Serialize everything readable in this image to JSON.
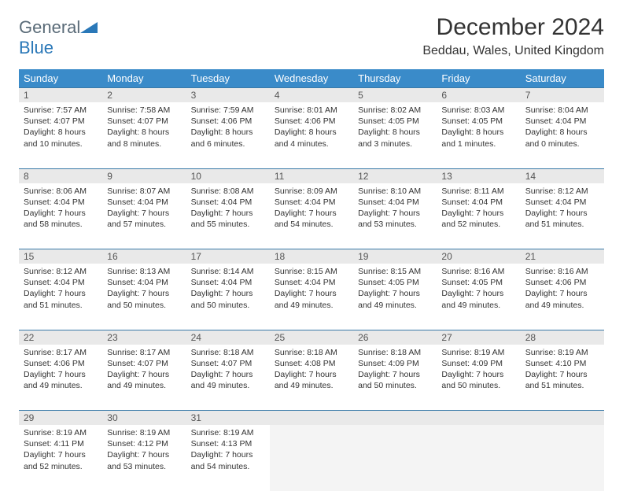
{
  "brand": {
    "general": "General",
    "blue": "Blue"
  },
  "title": "December 2024",
  "location": "Beddau, Wales, United Kingdom",
  "colors": {
    "header_bg": "#3a8bc9",
    "header_text": "#ffffff",
    "daynum_bg": "#e9e9e9",
    "rule": "#3a7aa8",
    "logo_gray": "#5a6b78",
    "logo_blue": "#2a78b8"
  },
  "weekdays": [
    "Sunday",
    "Monday",
    "Tuesday",
    "Wednesday",
    "Thursday",
    "Friday",
    "Saturday"
  ],
  "weeks": [
    {
      "days": [
        {
          "n": "1",
          "sunrise": "7:57 AM",
          "sunset": "4:07 PM",
          "day_h": "8",
          "day_m": "10"
        },
        {
          "n": "2",
          "sunrise": "7:58 AM",
          "sunset": "4:07 PM",
          "day_h": "8",
          "day_m": "8"
        },
        {
          "n": "3",
          "sunrise": "7:59 AM",
          "sunset": "4:06 PM",
          "day_h": "8",
          "day_m": "6"
        },
        {
          "n": "4",
          "sunrise": "8:01 AM",
          "sunset": "4:06 PM",
          "day_h": "8",
          "day_m": "4"
        },
        {
          "n": "5",
          "sunrise": "8:02 AM",
          "sunset": "4:05 PM",
          "day_h": "8",
          "day_m": "3"
        },
        {
          "n": "6",
          "sunrise": "8:03 AM",
          "sunset": "4:05 PM",
          "day_h": "8",
          "day_m": "1"
        },
        {
          "n": "7",
          "sunrise": "8:04 AM",
          "sunset": "4:04 PM",
          "day_h": "8",
          "day_m": "0"
        }
      ]
    },
    {
      "days": [
        {
          "n": "8",
          "sunrise": "8:06 AM",
          "sunset": "4:04 PM",
          "day_h": "7",
          "day_m": "58"
        },
        {
          "n": "9",
          "sunrise": "8:07 AM",
          "sunset": "4:04 PM",
          "day_h": "7",
          "day_m": "57"
        },
        {
          "n": "10",
          "sunrise": "8:08 AM",
          "sunset": "4:04 PM",
          "day_h": "7",
          "day_m": "55"
        },
        {
          "n": "11",
          "sunrise": "8:09 AM",
          "sunset": "4:04 PM",
          "day_h": "7",
          "day_m": "54"
        },
        {
          "n": "12",
          "sunrise": "8:10 AM",
          "sunset": "4:04 PM",
          "day_h": "7",
          "day_m": "53"
        },
        {
          "n": "13",
          "sunrise": "8:11 AM",
          "sunset": "4:04 PM",
          "day_h": "7",
          "day_m": "52"
        },
        {
          "n": "14",
          "sunrise": "8:12 AM",
          "sunset": "4:04 PM",
          "day_h": "7",
          "day_m": "51"
        }
      ]
    },
    {
      "days": [
        {
          "n": "15",
          "sunrise": "8:12 AM",
          "sunset": "4:04 PM",
          "day_h": "7",
          "day_m": "51"
        },
        {
          "n": "16",
          "sunrise": "8:13 AM",
          "sunset": "4:04 PM",
          "day_h": "7",
          "day_m": "50"
        },
        {
          "n": "17",
          "sunrise": "8:14 AM",
          "sunset": "4:04 PM",
          "day_h": "7",
          "day_m": "50"
        },
        {
          "n": "18",
          "sunrise": "8:15 AM",
          "sunset": "4:04 PM",
          "day_h": "7",
          "day_m": "49"
        },
        {
          "n": "19",
          "sunrise": "8:15 AM",
          "sunset": "4:05 PM",
          "day_h": "7",
          "day_m": "49"
        },
        {
          "n": "20",
          "sunrise": "8:16 AM",
          "sunset": "4:05 PM",
          "day_h": "7",
          "day_m": "49"
        },
        {
          "n": "21",
          "sunrise": "8:16 AM",
          "sunset": "4:06 PM",
          "day_h": "7",
          "day_m": "49"
        }
      ]
    },
    {
      "days": [
        {
          "n": "22",
          "sunrise": "8:17 AM",
          "sunset": "4:06 PM",
          "day_h": "7",
          "day_m": "49"
        },
        {
          "n": "23",
          "sunrise": "8:17 AM",
          "sunset": "4:07 PM",
          "day_h": "7",
          "day_m": "49"
        },
        {
          "n": "24",
          "sunrise": "8:18 AM",
          "sunset": "4:07 PM",
          "day_h": "7",
          "day_m": "49"
        },
        {
          "n": "25",
          "sunrise": "8:18 AM",
          "sunset": "4:08 PM",
          "day_h": "7",
          "day_m": "49"
        },
        {
          "n": "26",
          "sunrise": "8:18 AM",
          "sunset": "4:09 PM",
          "day_h": "7",
          "day_m": "50"
        },
        {
          "n": "27",
          "sunrise": "8:19 AM",
          "sunset": "4:09 PM",
          "day_h": "7",
          "day_m": "50"
        },
        {
          "n": "28",
          "sunrise": "8:19 AM",
          "sunset": "4:10 PM",
          "day_h": "7",
          "day_m": "51"
        }
      ]
    },
    {
      "days": [
        {
          "n": "29",
          "sunrise": "8:19 AM",
          "sunset": "4:11 PM",
          "day_h": "7",
          "day_m": "52"
        },
        {
          "n": "30",
          "sunrise": "8:19 AM",
          "sunset": "4:12 PM",
          "day_h": "7",
          "day_m": "53"
        },
        {
          "n": "31",
          "sunrise": "8:19 AM",
          "sunset": "4:13 PM",
          "day_h": "7",
          "day_m": "54"
        },
        null,
        null,
        null,
        null
      ]
    }
  ],
  "labels": {
    "sunrise": "Sunrise:",
    "sunset": "Sunset:",
    "daylight1": "Daylight:",
    "hours": "hours",
    "and": "and",
    "minutes": "minutes."
  }
}
